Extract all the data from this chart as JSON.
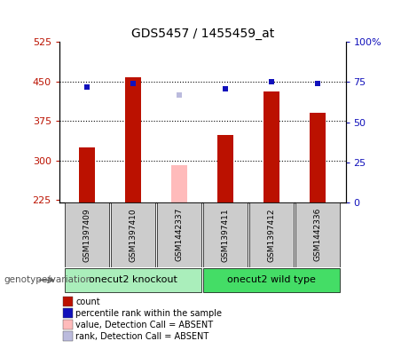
{
  "title": "GDS5457 / 1455459_at",
  "samples": [
    "GSM1397409",
    "GSM1397410",
    "GSM1442337",
    "GSM1397411",
    "GSM1397412",
    "GSM1442336"
  ],
  "count_values": [
    325,
    458,
    null,
    348,
    430,
    390
  ],
  "count_absent_values": [
    null,
    null,
    290,
    null,
    null,
    null
  ],
  "rank_values": [
    72,
    74,
    null,
    71,
    75,
    74
  ],
  "rank_absent_values": [
    null,
    null,
    67,
    null,
    null,
    null
  ],
  "ylim_left": [
    220,
    525
  ],
  "ylim_right": [
    0,
    100
  ],
  "yticks_left": [
    225,
    300,
    375,
    450,
    525
  ],
  "yticks_right": [
    0,
    25,
    50,
    75,
    100
  ],
  "ytick_labels_left": [
    "225",
    "300",
    "375",
    "450",
    "525"
  ],
  "ytick_labels_right": [
    "0",
    "25",
    "50",
    "75",
    "100%"
  ],
  "bar_color_present": "#BB1100",
  "bar_color_absent": "#FFBBBB",
  "rank_color_present": "#1111BB",
  "rank_color_absent": "#BBBBDD",
  "group_knockout_color": "#AAEEBB",
  "group_wildtype_color": "#44DD66",
  "groups": [
    {
      "label": "onecut2 knockout",
      "samples": [
        0,
        1,
        2
      ],
      "color": "#AAEEBB"
    },
    {
      "label": "onecut2 wild type",
      "samples": [
        3,
        4,
        5
      ],
      "color": "#44DD66"
    }
  ],
  "group_label_prefix": "genotype/variation",
  "bar_width": 0.35,
  "rank_marker_size": 5,
  "rank_marker": "s",
  "baseline": 220,
  "legend_items": [
    {
      "label": "count",
      "color": "#BB1100"
    },
    {
      "label": "percentile rank within the sample",
      "color": "#1111BB"
    },
    {
      "label": "value, Detection Call = ABSENT",
      "color": "#FFBBBB"
    },
    {
      "label": "rank, Detection Call = ABSENT",
      "color": "#BBBBDD"
    }
  ],
  "sample_box_color": "#CCCCCC",
  "arrow_color": "#888888"
}
